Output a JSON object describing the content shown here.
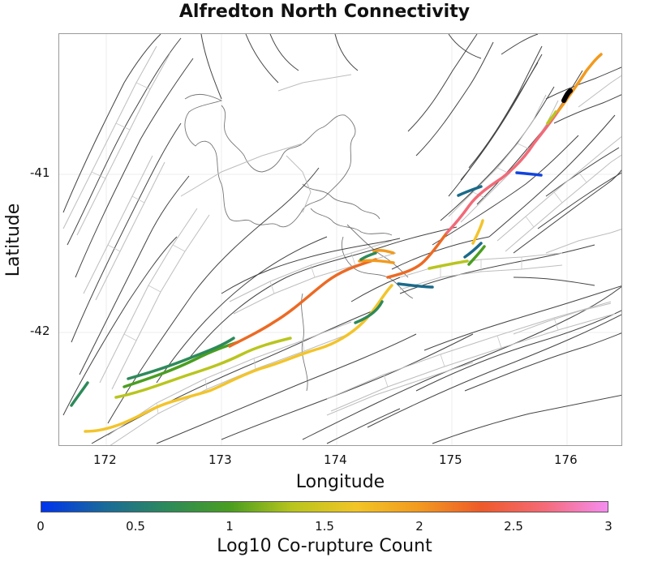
{
  "title": "Alfredton North Connectivity",
  "axes": {
    "xlabel": "Longitude",
    "ylabel": "Latitude",
    "xticks": [
      "172",
      "173",
      "174",
      "175",
      "176"
    ],
    "yticks": [
      "-41",
      "-42"
    ]
  },
  "colorbar": {
    "label": "Log10 Co-rupture Count",
    "ticks": [
      "0",
      "0.5",
      "1",
      "1.5",
      "2",
      "2.5",
      "3"
    ],
    "colors": [
      "#0033ee",
      "#1a6a9a",
      "#2d8a5a",
      "#4a9e20",
      "#b9c51e",
      "#f2c526",
      "#f29a20",
      "#ee5a2a",
      "#f56a78",
      "#f58ef0"
    ]
  },
  "highlight_colors": {
    "blue": "#1144dd",
    "teal": "#1a6a8a",
    "green": "#2e8a5c",
    "lime": "#6aaa22",
    "yellow": "#f3c42a",
    "orange": "#f29a1e",
    "dark_orange": "#ec6a24",
    "pink": "#f26a78",
    "black": "#000000"
  }
}
